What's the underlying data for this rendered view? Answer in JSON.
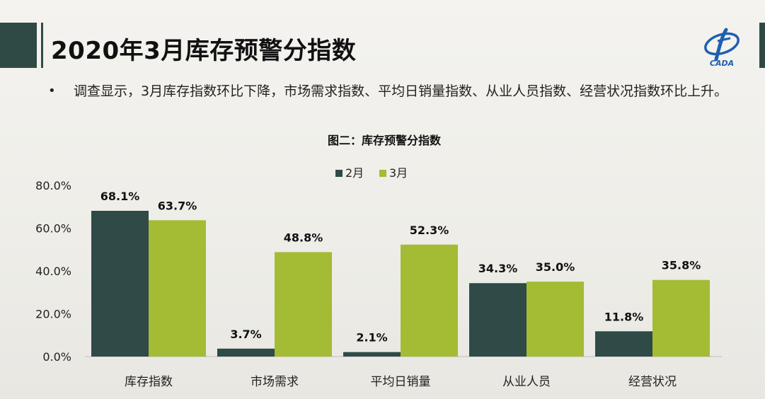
{
  "slide": {
    "title": "2020年3月库存预警分指数",
    "bullet_marker": "•",
    "bullet_text": "调查显示，3月库存指数环比下降，市场需求指数、平均日销量指数、从业人员指数、经营状况指数环比上升。",
    "logo_text": "CADA"
  },
  "colors": {
    "accent_dark": "#2f4a44",
    "feb": "#2f4a47",
    "mar": "#a4bb34"
  },
  "chart_data": {
    "type": "bar",
    "title": "图二：库存预警分指数",
    "categories": [
      "库存指数",
      "市场需求",
      "平均日销量",
      "从业人员",
      "经营状况"
    ],
    "series": [
      {
        "name": "2月",
        "values": [
          68.1,
          3.7,
          2.1,
          34.3,
          11.8
        ],
        "labels": [
          "68.1%",
          "3.7%",
          "2.1%",
          "34.3%",
          "11.8%"
        ]
      },
      {
        "name": "3月",
        "values": [
          63.7,
          48.8,
          52.3,
          35.0,
          35.8
        ],
        "labels": [
          "63.7%",
          "48.8%",
          "52.3%",
          "35.0%",
          "35.8%"
        ]
      }
    ],
    "ylim": [
      0,
      80
    ],
    "yticks": [
      0,
      20,
      40,
      60,
      80
    ],
    "ytick_labels": [
      "0.0%",
      "20.0%",
      "40.0%",
      "60.0%",
      "80.0%"
    ],
    "grid": false,
    "legend_position": "top"
  }
}
